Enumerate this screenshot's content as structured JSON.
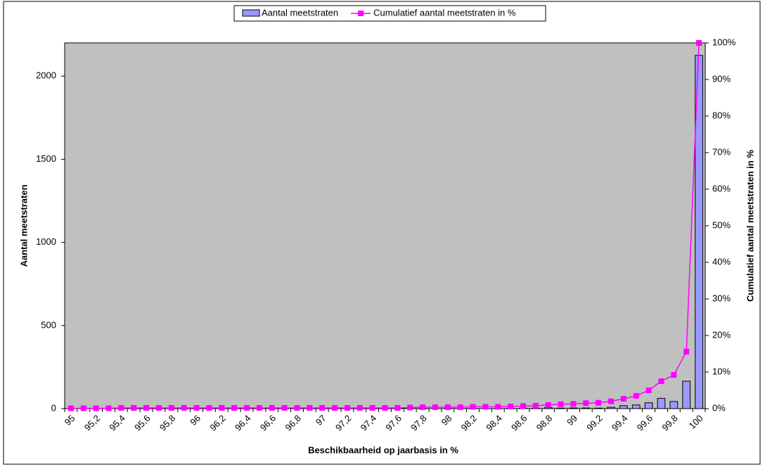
{
  "chart_data": {
    "type": "bar-line",
    "xlabel": "Beschikbaarheid op jaarbasis in %",
    "ylabel": "Aantal meetstraten",
    "y2label": "Cumulatief aantal meetstraten in %",
    "categories": [
      "95",
      null,
      "95,2",
      null,
      "95,4",
      null,
      "95,6",
      null,
      "95,8",
      null,
      "96",
      null,
      "96,2",
      null,
      "96,4",
      null,
      "96,6",
      null,
      "96,8",
      null,
      "97",
      null,
      "97,2",
      null,
      "97,4",
      null,
      "97,6",
      null,
      "97,8",
      null,
      "98",
      null,
      "98,2",
      null,
      "98,4",
      null,
      "98,6",
      null,
      "98,8",
      null,
      "99",
      null,
      "99,2",
      null,
      "99,4",
      null,
      "99,6",
      null,
      "99,8",
      null,
      "100"
    ],
    "series": [
      {
        "name": "Aantal meetstraten",
        "type": "bar",
        "color": "#9999ff",
        "values": [
          0,
          0,
          0,
          0,
          1,
          0,
          0,
          0,
          0,
          0,
          0,
          0,
          0,
          0,
          0,
          0,
          0,
          0,
          0,
          0,
          0,
          0,
          0,
          0,
          0,
          0,
          0,
          1,
          2,
          0,
          1,
          0,
          1,
          0,
          1,
          2,
          3,
          3,
          6,
          3,
          4,
          4,
          3,
          8,
          18,
          22,
          35,
          62,
          43,
          165,
          2125
        ]
      },
      {
        "name": "Cumulatief aantal meetstraten in %",
        "type": "line",
        "color": "#ff00ff",
        "axis": "y2",
        "values": [
          0.1,
          0.1,
          0.1,
          0.1,
          0.2,
          0.2,
          0.2,
          0.2,
          0.2,
          0.2,
          0.2,
          0.2,
          0.2,
          0.2,
          0.2,
          0.2,
          0.2,
          0.2,
          0.2,
          0.2,
          0.2,
          0.2,
          0.2,
          0.2,
          0.2,
          0.2,
          0.2,
          0.3,
          0.4,
          0.4,
          0.4,
          0.4,
          0.5,
          0.5,
          0.5,
          0.6,
          0.7,
          0.8,
          1.0,
          1.2,
          1.3,
          1.5,
          1.6,
          2.0,
          2.7,
          3.5,
          5.0,
          7.5,
          9.2,
          15.6,
          100
        ]
      }
    ],
    "ylim": [
      0,
      2200
    ],
    "yticks": [
      0,
      500,
      1000,
      1500,
      2000
    ],
    "y2lim": [
      0,
      100
    ],
    "y2ticks": [
      {
        "value": 0,
        "label": "0%"
      },
      {
        "value": 10,
        "label": "10%"
      },
      {
        "value": 20,
        "label": "20%"
      },
      {
        "value": 30,
        "label": "30%"
      },
      {
        "value": 40,
        "label": "40%"
      },
      {
        "value": 50,
        "label": "50%"
      },
      {
        "value": 60,
        "label": "60%"
      },
      {
        "value": 70,
        "label": "70%"
      },
      {
        "value": 80,
        "label": "80%"
      },
      {
        "value": 90,
        "label": "90%"
      },
      {
        "value": 100,
        "label": "100%"
      }
    ],
    "legend": "top",
    "grid": false,
    "plot_background": "#c0c0c0"
  }
}
